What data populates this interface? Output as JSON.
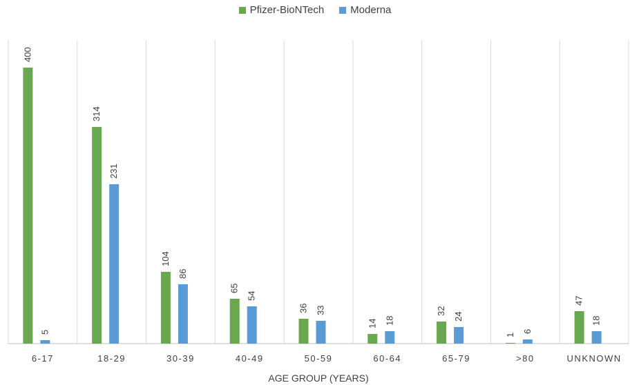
{
  "chart_data": {
    "type": "bar",
    "title": "",
    "xlabel": "AGE GROUP (YEARS)",
    "ylabel": "",
    "categories": [
      "6-17",
      "18-29",
      "30-39",
      "40-49",
      "50-59",
      "60-64",
      "65-79",
      ">80",
      "UNKNOWN"
    ],
    "series": [
      {
        "name": "Pfizer-BioNTech",
        "color": "#6aa84f",
        "values": [
          400,
          314,
          104,
          65,
          36,
          14,
          32,
          1,
          47
        ]
      },
      {
        "name": "Moderna",
        "color": "#5b9bd5",
        "values": [
          5,
          231,
          86,
          54,
          33,
          18,
          24,
          6,
          18
        ]
      }
    ],
    "ylim": [
      0,
      440
    ],
    "legend_position": "top-center",
    "grid": "vertical category separators",
    "data_labels": "rotated, above bars"
  }
}
